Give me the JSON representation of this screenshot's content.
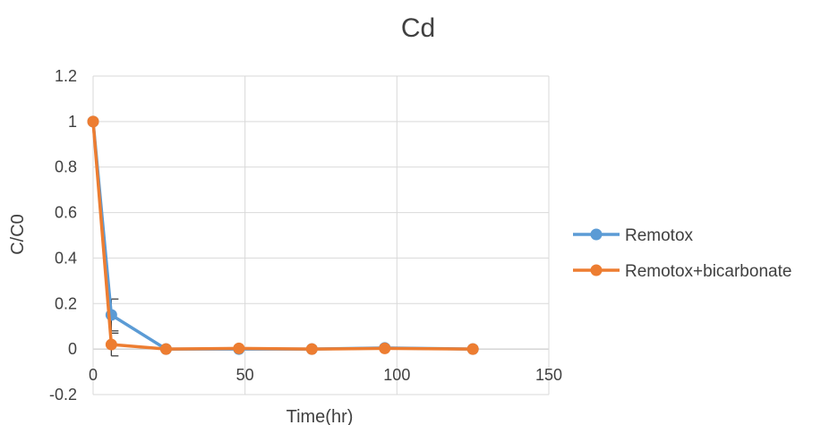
{
  "chart_data": {
    "type": "line",
    "title": "Cd",
    "xlabel": "Time(hr)",
    "ylabel": "C/C0",
    "xlim": [
      0,
      150
    ],
    "ylim": [
      -0.2,
      1.2
    ],
    "x_ticks": [
      "0",
      "50",
      "100",
      "150"
    ],
    "y_ticks": [
      "-0.2",
      "0",
      "0.2",
      "0.4",
      "0.6",
      "0.8",
      "1",
      "1.2"
    ],
    "grid": true,
    "legend_position": "right",
    "series": [
      {
        "name": "Remotox",
        "color": "#5B9BD5",
        "points": [
          {
            "x": 0,
            "y": 1.0
          },
          {
            "x": 6,
            "y": 0.15
          },
          {
            "x": 24,
            "y": 0.0
          },
          {
            "x": 48,
            "y": 0.0
          },
          {
            "x": 72,
            "y": 0.0
          },
          {
            "x": 96,
            "y": 0.005
          },
          {
            "x": 125,
            "y": 0.0
          }
        ],
        "error_bars": [
          {
            "x": 6,
            "err": 0.07
          }
        ]
      },
      {
        "name": "Remotox+bicarbonate",
        "color": "#ED7D31",
        "points": [
          {
            "x": 0,
            "y": 1.0
          },
          {
            "x": 6,
            "y": 0.02
          },
          {
            "x": 24,
            "y": 0.0
          },
          {
            "x": 48,
            "y": 0.003
          },
          {
            "x": 72,
            "y": 0.0
          },
          {
            "x": 96,
            "y": 0.003
          },
          {
            "x": 125,
            "y": 0.0
          }
        ],
        "error_bars": [
          {
            "x": 6,
            "err": 0.05
          }
        ]
      }
    ]
  }
}
